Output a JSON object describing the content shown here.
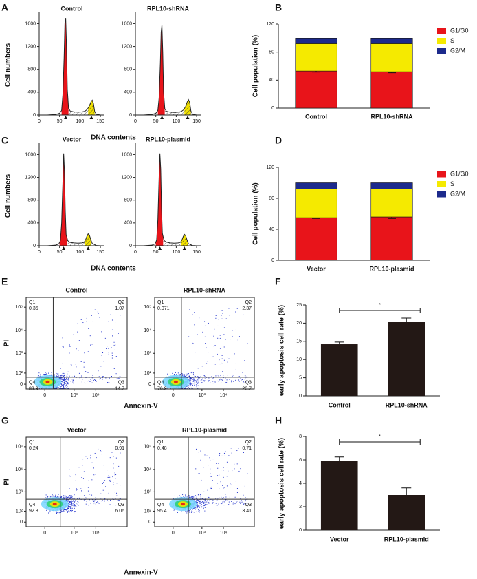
{
  "chart_data": [
    {
      "panel": "A",
      "type": "dna-histogram",
      "ylabel": "Cell numbers",
      "xlabel": "DNA contents",
      "plots": [
        {
          "title": "Control",
          "x": [
            0,
            20,
            40,
            50,
            55,
            58,
            61,
            63,
            65,
            67,
            69,
            72,
            76,
            85,
            95,
            105,
            112,
            118,
            123,
            127,
            130,
            133,
            136,
            140,
            150,
            160
          ],
          "values": [
            0,
            0,
            10,
            30,
            80,
            350,
            1000,
            1600,
            1700,
            1200,
            450,
            120,
            70,
            55,
            50,
            55,
            65,
            100,
            160,
            230,
            260,
            200,
            60,
            15,
            0,
            0
          ],
          "xlim": [
            0,
            160
          ],
          "xticks": [
            0,
            50,
            100,
            150
          ],
          "ylim": [
            0,
            1750
          ],
          "yticks": [
            0,
            400,
            800,
            1200,
            1600
          ],
          "phases": [
            {
              "from": 55,
              "to": 72,
              "color": "#e8141a"
            },
            {
              "from": 72,
              "to": 120,
              "color": "#ffffff",
              "hatched": true
            },
            {
              "from": 120,
              "to": 136,
              "color": "#f2e200",
              "hatched": true
            }
          ],
          "markers": [
            65,
            128
          ]
        },
        {
          "title": "RPL10-shRNA",
          "x": [
            0,
            20,
            40,
            50,
            55,
            58,
            61,
            63,
            65,
            67,
            69,
            72,
            76,
            85,
            95,
            105,
            112,
            118,
            123,
            127,
            130,
            133,
            136,
            140,
            150,
            160
          ],
          "values": [
            0,
            0,
            10,
            30,
            80,
            300,
            900,
            1450,
            1580,
            1100,
            400,
            110,
            65,
            50,
            45,
            50,
            60,
            90,
            150,
            230,
            270,
            220,
            70,
            15,
            0,
            0
          ],
          "xlim": [
            0,
            160
          ],
          "xticks": [
            0,
            50,
            100,
            150
          ],
          "ylim": [
            0,
            1750
          ],
          "yticks": [
            0,
            400,
            800,
            1200,
            1600
          ],
          "phases": [
            {
              "from": 55,
              "to": 72,
              "color": "#e8141a"
            },
            {
              "from": 72,
              "to": 120,
              "color": "#ffffff",
              "hatched": true
            },
            {
              "from": 120,
              "to": 136,
              "color": "#f2e200",
              "hatched": true
            }
          ],
          "markers": [
            65,
            128
          ]
        }
      ]
    },
    {
      "panel": "B",
      "type": "stacked-bar",
      "ylabel": "Cell population (%)",
      "categories": [
        "Control",
        "RPL10-shRNA"
      ],
      "series": [
        {
          "name": "G1/G0",
          "color": "#e8141a",
          "values": [
            53,
            52
          ],
          "errors": [
            1.5,
            1.5
          ]
        },
        {
          "name": "S",
          "color": "#f5ea00",
          "values": [
            39,
            40
          ]
        },
        {
          "name": "G2/M",
          "color": "#1c2a8c",
          "values": [
            8,
            8
          ]
        }
      ],
      "ylim": [
        0,
        120
      ],
      "yticks": [
        0,
        40,
        80,
        120
      ]
    },
    {
      "panel": "C",
      "type": "dna-histogram",
      "ylabel": "Cell numbers",
      "xlabel": "DNA contents",
      "plots": [
        {
          "title": "Vector",
          "x": [
            0,
            20,
            40,
            48,
            52,
            55,
            58,
            60,
            62,
            64,
            66,
            70,
            75,
            85,
            95,
            105,
            110,
            114,
            117,
            120,
            123,
            126,
            130,
            140,
            150,
            160
          ],
          "values": [
            0,
            0,
            10,
            30,
            90,
            400,
            1100,
            1620,
            1300,
            600,
            200,
            90,
            60,
            50,
            45,
            50,
            60,
            110,
            170,
            210,
            190,
            120,
            40,
            5,
            0,
            0
          ],
          "xlim": [
            0,
            160
          ],
          "xticks": [
            0,
            50,
            100,
            150
          ],
          "ylim": [
            0,
            1750
          ],
          "yticks": [
            0,
            400,
            800,
            1200,
            1600
          ],
          "phases": [
            {
              "from": 50,
              "to": 68,
              "color": "#e8141a"
            },
            {
              "from": 68,
              "to": 112,
              "color": "#ffffff",
              "hatched": true
            },
            {
              "from": 112,
              "to": 128,
              "color": "#f2e200",
              "hatched": true
            }
          ],
          "markers": [
            60,
            120
          ]
        },
        {
          "title": "RPL10-plasmid",
          "x": [
            0,
            20,
            40,
            48,
            52,
            55,
            58,
            60,
            62,
            64,
            66,
            70,
            75,
            85,
            95,
            105,
            110,
            114,
            117,
            120,
            123,
            126,
            130,
            140,
            150,
            160
          ],
          "values": [
            0,
            0,
            10,
            30,
            100,
            450,
            1200,
            1620,
            1350,
            650,
            220,
            95,
            65,
            50,
            45,
            50,
            60,
            100,
            160,
            200,
            180,
            110,
            35,
            5,
            0,
            0
          ],
          "xlim": [
            0,
            160
          ],
          "xticks": [
            0,
            50,
            100,
            150
          ],
          "ylim": [
            0,
            1750
          ],
          "yticks": [
            0,
            400,
            800,
            1200,
            1600
          ],
          "phases": [
            {
              "from": 50,
              "to": 68,
              "color": "#e8141a"
            },
            {
              "from": 68,
              "to": 112,
              "color": "#ffffff",
              "hatched": true
            },
            {
              "from": 112,
              "to": 128,
              "color": "#f2e200",
              "hatched": true
            }
          ],
          "markers": [
            60,
            120
          ]
        }
      ]
    },
    {
      "panel": "D",
      "type": "stacked-bar",
      "ylabel": "Cell population (%)",
      "categories": [
        "Vector",
        "RPL10-plasmid"
      ],
      "series": [
        {
          "name": "G1/G0",
          "color": "#e8141a",
          "values": [
            55,
            56
          ],
          "errors": [
            1,
            2
          ]
        },
        {
          "name": "S",
          "color": "#f5ea00",
          "values": [
            37,
            36
          ]
        },
        {
          "name": "G2/M",
          "color": "#1c2a8c",
          "values": [
            8,
            8
          ]
        }
      ],
      "ylim": [
        0,
        120
      ],
      "yticks": [
        0,
        40,
        80,
        120
      ]
    },
    {
      "panel": "E",
      "type": "flow",
      "ylabel": "PI",
      "xlabel": "Annexin-V",
      "plots": [
        {
          "title": "Control",
          "quadrants": [
            {
              "name": "Q1",
              "value": "0.35"
            },
            {
              "name": "Q2",
              "value": "1.07"
            },
            {
              "name": "Q3",
              "value": "14.7"
            },
            {
              "name": "Q4",
              "value": "83.9"
            }
          ],
          "gate": [
            70,
            50
          ]
        },
        {
          "title": "RPL10-shRNA",
          "quadrants": [
            {
              "name": "Q1",
              "value": "0.071"
            },
            {
              "name": "Q2",
              "value": "2.37"
            },
            {
              "name": "Q3",
              "value": "20.7"
            },
            {
              "name": "Q4",
              "value": "76.9"
            }
          ],
          "gate": [
            70,
            50
          ]
        }
      ],
      "xlim": [
        -300,
        262144
      ],
      "xticks": [
        0,
        {
          "value": 1000,
          "label": "10³"
        },
        {
          "value": 10000,
          "label": "10⁴"
        }
      ],
      "ylim": [
        -30,
        262144
      ],
      "yticks": [
        0,
        {
          "value": 100,
          "label": "10²"
        },
        {
          "value": 1000,
          "label": "10³"
        },
        {
          "value": 10000,
          "label": "10⁴"
        },
        {
          "value": 100000,
          "label": "10⁵"
        }
      ]
    },
    {
      "panel": "F",
      "type": "bar",
      "ylabel": "early apoptosis cell rate (%)",
      "categories": [
        "Control",
        "RPL10-shRNA"
      ],
      "values": [
        14.2,
        20.3
      ],
      "errors": [
        0.6,
        1.1
      ],
      "color": "#231815",
      "annotation": "*",
      "ylim": [
        0,
        25
      ],
      "yticks": [
        0,
        5,
        10,
        15,
        20,
        25
      ]
    },
    {
      "panel": "G",
      "type": "flow",
      "ylabel": "PI",
      "xlabel": "Annexin-V",
      "plots": [
        {
          "title": "Vector",
          "quadrants": [
            {
              "name": "Q1",
              "value": "0.24"
            },
            {
              "name": "Q2",
              "value": "0.91"
            },
            {
              "name": "Q3",
              "value": "6.06"
            },
            {
              "name": "Q4",
              "value": "92.8"
            }
          ],
          "gate": [
            200,
            450
          ]
        },
        {
          "title": "RPL10-plasmid",
          "quadrants": [
            {
              "name": "Q1",
              "value": "0.48"
            },
            {
              "name": "Q2",
              "value": "0.71"
            },
            {
              "name": "Q3",
              "value": "3.41"
            },
            {
              "name": "Q4",
              "value": "95.4"
            }
          ],
          "gate": [
            200,
            450
          ]
        }
      ],
      "xlim": [
        -300,
        262144
      ],
      "xticks": [
        0,
        {
          "value": 1000,
          "label": "10³"
        },
        {
          "value": 10000,
          "label": "10⁴"
        }
      ],
      "ylim": [
        -30,
        262144
      ],
      "yticks": [
        0,
        {
          "value": 100,
          "label": "10²"
        },
        {
          "value": 1000,
          "label": "10³"
        },
        {
          "value": 10000,
          "label": "10⁴"
        },
        {
          "value": 100000,
          "label": "10⁵"
        }
      ]
    },
    {
      "panel": "H",
      "type": "bar",
      "ylabel": "early apoptosis cell rate (%)",
      "categories": [
        "Vector",
        "RPL10-plasmid"
      ],
      "values": [
        5.9,
        3.0
      ],
      "errors": [
        0.35,
        0.6
      ],
      "color": "#231815",
      "annotation": "*",
      "ylim": [
        0,
        8
      ],
      "yticks": [
        0,
        2,
        4,
        6,
        8
      ]
    }
  ]
}
